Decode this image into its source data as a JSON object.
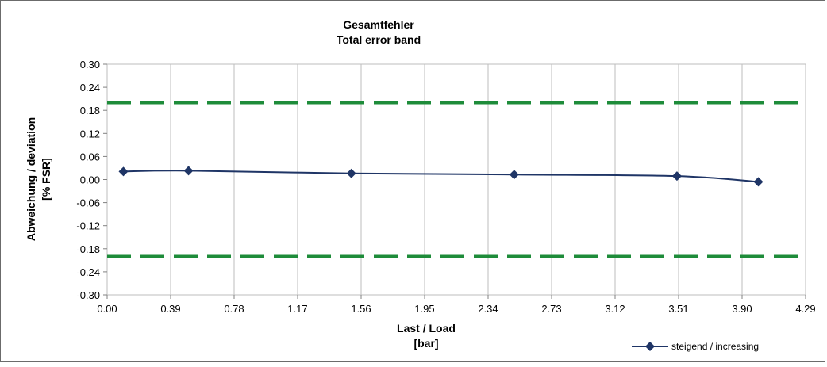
{
  "chart_data": {
    "type": "line",
    "title": "Gesamtfehler",
    "subtitle": "Total error band",
    "xlabel": "Last / Load",
    "xlabel_unit": "[bar]",
    "ylabel": "Abweichung /  deviation",
    "ylabel_unit": "[% FSR]",
    "xlim": [
      0,
      4.29
    ],
    "ylim": [
      -0.3,
      0.3
    ],
    "x_ticks": [
      "0.00",
      "0.39",
      "0.78",
      "1.17",
      "1.56",
      "1.95",
      "2.34",
      "2.73",
      "3.12",
      "3.51",
      "3.90",
      "4.29"
    ],
    "y_ticks": [
      "0.30",
      "0.24",
      "0.18",
      "0.12",
      "0.06",
      "0.00",
      "-0.06",
      "-0.12",
      "-0.18",
      "-0.24",
      "-0.30"
    ],
    "grid": "vertical",
    "legend_position": "bottom-right",
    "series": [
      {
        "name": "steigend / increasing",
        "color": "#1f3566",
        "marker": "diamond",
        "x": [
          0.1,
          0.5,
          1.5,
          2.5,
          3.5,
          4.0
        ],
        "y": [
          0.021,
          0.023,
          0.016,
          0.013,
          0.009,
          -0.006
        ]
      }
    ],
    "limit_lines": {
      "color": "#1e8c3a",
      "style": "dashed",
      "values": [
        0.2,
        -0.2
      ]
    }
  }
}
